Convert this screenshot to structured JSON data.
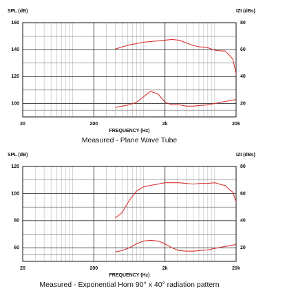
{
  "chart_data": [
    {
      "type": "line",
      "title": "Measured - Plane Wave Tube",
      "ylabel": "SPL (dB)",
      "y2label": "IZI (dBs)",
      "xlabel": "FREQUENCY (Hz)",
      "xscale": "log",
      "grid": true,
      "xlim": [
        20,
        20000
      ],
      "xticks": [
        20,
        200,
        {
          "value": 2000,
          "label": "2k"
        },
        {
          "value": 20000,
          "label": "20k"
        }
      ],
      "ylim": [
        90,
        160
      ],
      "yticks": [
        100,
        120,
        140,
        160
      ],
      "y2lim": [
        10,
        80
      ],
      "y2ticks": [
        20,
        40,
        60,
        80
      ],
      "x": [
        400,
        500,
        630,
        800,
        1000,
        1250,
        1600,
        2000,
        2500,
        3150,
        4000,
        5000,
        6300,
        8000,
        10000,
        12500,
        14000,
        16000,
        18000,
        20000
      ],
      "series": [
        {
          "color": "#d8322f",
          "values": [
            140.5,
            142,
            143.5,
            144.5,
            145.5,
            146,
            146.5,
            147,
            147.5,
            147,
            145,
            143,
            142,
            141.5,
            139.5,
            139,
            139,
            136,
            133,
            122
          ]
        },
        {
          "color": "#d8322f",
          "axis": "y2",
          "values": [
            17,
            18,
            19,
            21,
            25,
            29,
            27,
            21,
            19,
            19,
            18,
            18,
            18.5,
            19,
            20,
            21,
            21.5,
            22,
            22.5,
            23
          ]
        }
      ]
    },
    {
      "type": "line",
      "title": "Measured - Exponential Horn 90° x 40° radiation pattern",
      "ylabel": "SPL (dB)",
      "y2label": "IZI (dBs)",
      "xlabel": "FREQUENCY (Hz)",
      "xscale": "log",
      "grid": true,
      "xlim": [
        20,
        20000
      ],
      "xticks": [
        20,
        200,
        {
          "value": 2000,
          "label": "2k"
        },
        {
          "value": 20000,
          "label": "20k"
        }
      ],
      "ylim": [
        50,
        120
      ],
      "yticks": [
        60,
        80,
        100,
        120
      ],
      "y2lim": [
        10,
        80
      ],
      "y2ticks": [
        20,
        40,
        60,
        80
      ],
      "x": [
        400,
        500,
        630,
        800,
        1000,
        1250,
        1600,
        2000,
        2500,
        3150,
        4000,
        5000,
        6300,
        8000,
        10000,
        12500,
        14000,
        16000,
        18000,
        20000
      ],
      "series": [
        {
          "color": "#d8322f",
          "values": [
            82,
            86,
            95,
            102,
            105,
            106,
            107,
            108,
            108,
            108,
            107.5,
            107,
            107.5,
            107.5,
            108,
            106.5,
            106,
            103,
            101,
            94
          ]
        },
        {
          "color": "#d8322f",
          "axis": "y2",
          "values": [
            17,
            18,
            20,
            23,
            25,
            25.5,
            25,
            23,
            20,
            18,
            17.5,
            17.5,
            18,
            18.5,
            19.5,
            20.5,
            21,
            21.5,
            22,
            22.5
          ]
        }
      ]
    }
  ]
}
